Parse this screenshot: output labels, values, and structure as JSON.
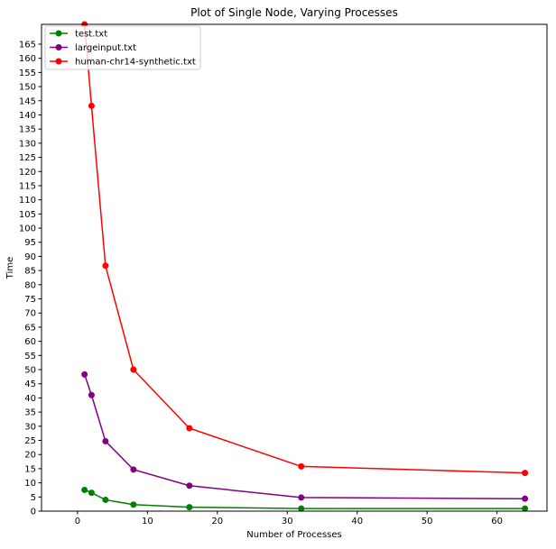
{
  "chart_data": {
    "type": "line",
    "title": "Plot of Single Node, Varying Processes",
    "xlabel": "Number of Processes",
    "ylabel": "Time",
    "xlim": [
      -5.15,
      67.15
    ],
    "ylim": [
      0,
      172
    ],
    "xticks": [
      0,
      10,
      20,
      30,
      40,
      50,
      60
    ],
    "yticks": [
      0,
      5,
      10,
      15,
      20,
      25,
      30,
      35,
      40,
      45,
      50,
      55,
      60,
      65,
      70,
      75,
      80,
      85,
      90,
      95,
      100,
      105,
      110,
      115,
      120,
      125,
      130,
      135,
      140,
      145,
      150,
      155,
      160,
      165
    ],
    "grid": false,
    "legend_position": "top-left",
    "series": [
      {
        "name": "test.txt",
        "color": "#008000",
        "x": [
          1,
          2,
          4,
          8,
          16,
          32,
          64
        ],
        "y": [
          7.5,
          6.5,
          4.0,
          2.3,
          1.4,
          0.9,
          0.9
        ]
      },
      {
        "name": "largeinput.txt",
        "color": "#800080",
        "x": [
          1,
          2,
          4,
          8,
          16,
          32,
          64
        ],
        "y": [
          48.3,
          41.0,
          24.7,
          14.7,
          9.0,
          4.8,
          4.4
        ]
      },
      {
        "name": "human-chr14-synthetic.txt",
        "color": "#ff0000",
        "x": [
          1,
          2,
          4,
          8,
          16,
          32,
          64
        ],
        "y": [
          172.0,
          143.2,
          86.7,
          50.0,
          29.3,
          15.8,
          13.5
        ]
      }
    ]
  }
}
